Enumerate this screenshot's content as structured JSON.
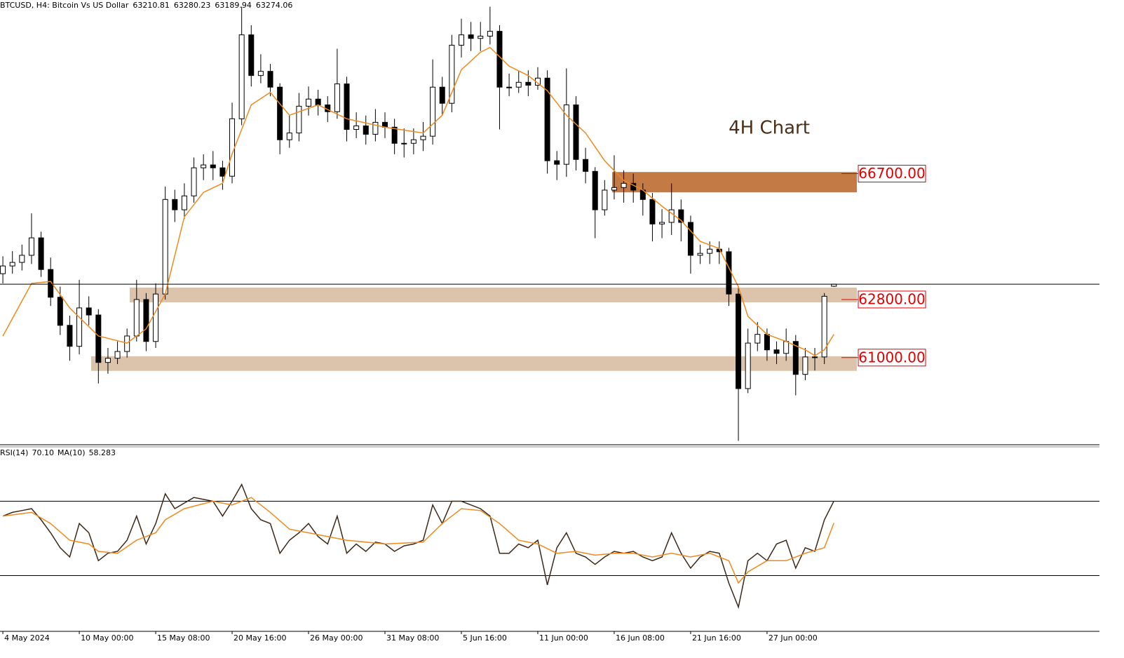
{
  "chart_data": [
    {
      "type": "candlestick",
      "title": "BTCUSD, H4:  Bitcoin Vs US Dollar",
      "open": [
        63600,
        63840,
        63950,
        64170,
        64710,
        63730,
        62870,
        62000,
        61350,
        62540,
        62320,
        60850,
        60980,
        61190,
        61670,
        62800,
        61500,
        62970,
        65900,
        65580,
        66010,
        66880,
        66970,
        66880,
        66620,
        68400,
        71000,
        69740,
        69870,
        69380,
        67750,
        67960,
        68790,
        69010,
        68830,
        68620,
        69480,
        68070,
        68180,
        67920,
        68290,
        68140,
        67640,
        67640,
        67750,
        67860,
        69380,
        68880,
        70680,
        71000,
        70890,
        70960,
        71110,
        69380,
        69380,
        69530,
        69440,
        69660,
        67100,
        66990,
        68830,
        67140,
        66770,
        65580,
        66190,
        66270,
        66400,
        66190,
        65900,
        65140,
        65190,
        65580,
        65190,
        64170,
        64230,
        64360,
        64280,
        62970,
        60040,
        61450,
        61720,
        61240,
        61130,
        61500,
        60480,
        61020,
        61020,
        63210.81
      ],
      "high": [
        64140,
        64300,
        64500,
        65470,
        64900,
        64100,
        63200,
        62300,
        63410,
        62900,
        62500,
        61300,
        61500,
        61900,
        63410,
        63000,
        63300,
        66300,
        66200,
        66400,
        67200,
        67300,
        67400,
        67100,
        68900,
        71870,
        71300,
        70400,
        70100,
        69500,
        68500,
        69200,
        69400,
        69300,
        69100,
        70570,
        69700,
        68600,
        68500,
        68700,
        68600,
        68400,
        68100,
        68100,
        68300,
        70240,
        69700,
        71000,
        71500,
        71400,
        71400,
        71870,
        71300,
        69800,
        69900,
        69900,
        70000,
        69900,
        67400,
        69960,
        69100,
        67500,
        66900,
        66500,
        67270,
        66800,
        66700,
        66400,
        66100,
        65600,
        66400,
        65900,
        65400,
        64500,
        64600,
        64600,
        64400,
        63200,
        61900,
        62100,
        61900,
        61500,
        61900,
        61700,
        61300,
        61300,
        63000,
        63280.23
      ],
      "low": [
        63300,
        63600,
        63700,
        63900,
        63500,
        62600,
        61700,
        60900,
        61100,
        62000,
        60200,
        60500,
        60800,
        61000,
        61500,
        61200,
        61300,
        62800,
        65200,
        65300,
        65800,
        66500,
        66500,
        66200,
        66400,
        68200,
        69400,
        69500,
        69100,
        67300,
        67500,
        67700,
        68500,
        68500,
        68300,
        68400,
        67700,
        67800,
        67600,
        67700,
        67800,
        67300,
        67200,
        67300,
        67400,
        67600,
        68500,
        68600,
        70300,
        70500,
        70500,
        70700,
        68070,
        69100,
        69200,
        69100,
        69300,
        66700,
        66500,
        66600,
        66800,
        66400,
        64700,
        65400,
        65900,
        65800,
        65800,
        65400,
        64600,
        64700,
        64800,
        64600,
        63600,
        63900,
        63900,
        63900,
        62600,
        58420,
        59900,
        61200,
        60900,
        60800,
        60900,
        59830,
        60300,
        60600,
        60800,
        63189.94
      ],
      "close": [
        63840,
        63950,
        64170,
        64710,
        63730,
        62870,
        62000,
        61350,
        62540,
        62320,
        60850,
        60980,
        61190,
        61670,
        62800,
        61500,
        62970,
        65900,
        65580,
        66010,
        66880,
        66970,
        66880,
        66620,
        68400,
        71000,
        69740,
        69870,
        69380,
        67750,
        67960,
        68790,
        69010,
        68830,
        68620,
        69480,
        68070,
        68180,
        67920,
        68290,
        68140,
        67640,
        67640,
        67750,
        67860,
        69380,
        68880,
        70680,
        71000,
        70890,
        70960,
        71110,
        69380,
        69380,
        69530,
        69440,
        69660,
        67100,
        66990,
        68830,
        67140,
        66770,
        65580,
        66190,
        66270,
        66400,
        66190,
        65900,
        65140,
        65190,
        65580,
        65190,
        64170,
        64230,
        64360,
        64280,
        62970,
        60040,
        61450,
        61720,
        61240,
        61130,
        61500,
        60480,
        61020,
        61020,
        62900,
        63274.06
      ],
      "color": "#000000",
      "ma": {
        "color": "#f0891e",
        "x": [
          0,
          3,
          5,
          7,
          10,
          13,
          15,
          17,
          19,
          21,
          23,
          24,
          26,
          28,
          30,
          33,
          36,
          40,
          44,
          46,
          48,
          50,
          51,
          53,
          55,
          57,
          59,
          61,
          63,
          65,
          67,
          69,
          71,
          73,
          75,
          77,
          78,
          80,
          82,
          84,
          85,
          86,
          87
        ],
        "values": [
          61670,
          63300,
          63360,
          62540,
          61670,
          61450,
          61890,
          62970,
          65360,
          66120,
          66400,
          67310,
          68830,
          69220,
          68510,
          68830,
          68400,
          68140,
          67960,
          68510,
          69920,
          70460,
          70610,
          70030,
          69740,
          69270,
          68510,
          67960,
          67100,
          66490,
          66190,
          65690,
          65250,
          64600,
          64380,
          63190,
          62280,
          61720,
          61500,
          61240,
          61060,
          61240,
          61720
        ]
      },
      "zones": [
        {
          "value": 66700,
          "label": "66700.00",
          "low": 66120,
          "high": 66750,
          "color": "#c47a45"
        },
        {
          "value": 62800,
          "label": "62800.00",
          "low": 62713,
          "high": 63169,
          "color": "#dcc4ac"
        },
        {
          "value": 61000,
          "label": "61000.00",
          "low": 60588,
          "high": 61043,
          "color": "#dcc4ac"
        }
      ],
      "annotation": "4H Chart",
      "xlim": [
        -0.3,
        114.8
      ],
      "ylim": [
        58300,
        72080
      ]
    },
    {
      "type": "line",
      "title": "RSI(14)",
      "ma_label": "MA(10)",
      "color": "#3b2818",
      "values": [
        62,
        64,
        65,
        66,
        60,
        53,
        45,
        40,
        58,
        53,
        38,
        42,
        43,
        49,
        62,
        47,
        58,
        74,
        66,
        69,
        72,
        71,
        70,
        62,
        70,
        79,
        66,
        60,
        58,
        42,
        49,
        53,
        58,
        51,
        47,
        62,
        42,
        47,
        43,
        48,
        47,
        43,
        46,
        47,
        49,
        68,
        58,
        70,
        70,
        68,
        66,
        62,
        42,
        42,
        47,
        45,
        49,
        25,
        45,
        53,
        42,
        40,
        36,
        40,
        43,
        42,
        43,
        40,
        38,
        40,
        53,
        42,
        34,
        40,
        43,
        42,
        26,
        13,
        38,
        42,
        38,
        47,
        49,
        34,
        45,
        43,
        60,
        70.1
      ],
      "value_labels": [
        null,
        null,
        null,
        null,
        null,
        null,
        null,
        null,
        null,
        null,
        null,
        null,
        null,
        null,
        null,
        null,
        null,
        null,
        null,
        null,
        null,
        null,
        null,
        null,
        null,
        null,
        null,
        null,
        null,
        null,
        null,
        null,
        null,
        null,
        null,
        null,
        null,
        null,
        null,
        null,
        null,
        null,
        null,
        null,
        null,
        null,
        null,
        null,
        null,
        null,
        null,
        null,
        null,
        null,
        null,
        null,
        null,
        null,
        null,
        null,
        null,
        null,
        null,
        null,
        null,
        null,
        null,
        null,
        null,
        null,
        null,
        null,
        null,
        null,
        null,
        null,
        null,
        null,
        null,
        null,
        null,
        null,
        null,
        null,
        null,
        null,
        null,
        "70.10"
      ],
      "ma": {
        "color": "#f0891e",
        "x": [
          0,
          3,
          5,
          7,
          9,
          10,
          12,
          14,
          16,
          17,
          19,
          22,
          24,
          26,
          28,
          30,
          32,
          34,
          36,
          40,
          44,
          46,
          48,
          50,
          52,
          54,
          56,
          58,
          60,
          62,
          64,
          66,
          68,
          70,
          72,
          74,
          76,
          77,
          78,
          80,
          82,
          84,
          86,
          87
        ],
        "values": [
          62,
          64,
          58,
          49,
          47,
          43,
          42,
          49,
          53,
          60,
          66,
          70,
          68,
          72,
          64,
          55,
          53,
          51,
          49,
          47,
          48,
          58,
          66,
          65,
          58,
          49,
          47,
          42,
          43,
          41,
          42,
          42,
          40,
          42,
          40,
          42,
          38,
          26,
          32,
          38,
          38,
          42,
          45,
          58.283
        ]
      },
      "levels": [
        70,
        30
      ],
      "xlim": [
        -0.3,
        114.8
      ],
      "ylim": [
        0,
        100
      ],
      "xticks": [
        {
          "value": 0,
          "label": "4 May 2024"
        },
        {
          "value": 8,
          "label": "10 May 00:00"
        },
        {
          "value": 16,
          "label": "15 May 08:00"
        },
        {
          "value": 24,
          "label": "20 May 16:00"
        },
        {
          "value": 32,
          "label": "26 May 00:00"
        },
        {
          "value": 40,
          "label": "31 May 08:00"
        },
        {
          "value": 48,
          "label": "5 Jun 16:00"
        },
        {
          "value": 56,
          "label": "11 Jun 00:00"
        },
        {
          "value": 64,
          "label": "16 Jun 08:00"
        },
        {
          "value": 72,
          "label": "21 Jun 16:00"
        },
        {
          "value": 80,
          "label": "27 Jun 00:00"
        }
      ]
    }
  ]
}
